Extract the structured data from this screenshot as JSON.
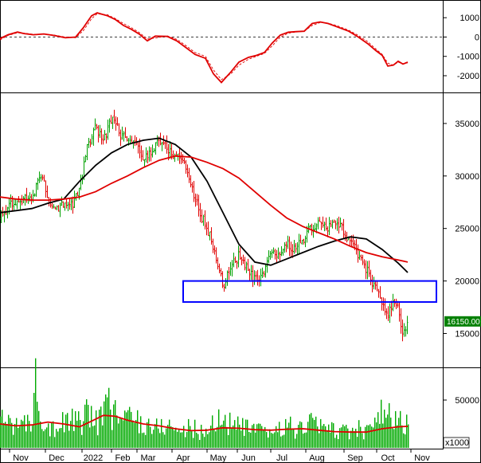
{
  "chart_data": [
    {
      "type": "line",
      "panel": "oscillator",
      "ylim": [
        -2700,
        1750
      ],
      "yticks": [
        "1000",
        "0",
        "-1000",
        "-2000"
      ],
      "ytick_values": [
        1000,
        0,
        -1000,
        -2000
      ],
      "zero_line": true,
      "series": [
        {
          "color": "#e00000",
          "style": "solid",
          "points": [
            [
              0,
              -80
            ],
            [
              10,
              120
            ],
            [
              22,
              260
            ],
            [
              30,
              180
            ],
            [
              42,
              120
            ],
            [
              55,
              160
            ],
            [
              68,
              80
            ],
            [
              82,
              -40
            ],
            [
              95,
              0
            ],
            [
              105,
              500
            ],
            [
              115,
              1100
            ],
            [
              122,
              1250
            ],
            [
              135,
              1100
            ],
            [
              145,
              900
            ],
            [
              155,
              600
            ],
            [
              165,
              400
            ],
            [
              175,
              150
            ],
            [
              185,
              -200
            ],
            [
              195,
              50
            ],
            [
              210,
              30
            ],
            [
              222,
              -200
            ],
            [
              232,
              -500
            ],
            [
              245,
              -900
            ],
            [
              258,
              -1100
            ],
            [
              268,
              -1900
            ],
            [
              278,
              -2350
            ],
            [
              290,
              -1800
            ],
            [
              300,
              -1300
            ],
            [
              312,
              -1050
            ],
            [
              322,
              -950
            ],
            [
              332,
              -800
            ],
            [
              342,
              -300
            ],
            [
              352,
              100
            ],
            [
              362,
              250
            ],
            [
              372,
              280
            ],
            [
              382,
              300
            ],
            [
              392,
              700
            ],
            [
              402,
              780
            ],
            [
              412,
              700
            ],
            [
              425,
              500
            ],
            [
              438,
              300
            ],
            [
              450,
              0
            ],
            [
              462,
              -350
            ],
            [
              472,
              -700
            ],
            [
              480,
              -950
            ],
            [
              487,
              -1500
            ],
            [
              494,
              -1450
            ],
            [
              500,
              -1250
            ],
            [
              506,
              -1400
            ],
            [
              512,
              -1300
            ]
          ]
        },
        {
          "color": "#e00000",
          "style": "dashed",
          "points": [
            [
              0,
              -150
            ],
            [
              10,
              80
            ],
            [
              22,
              220
            ],
            [
              30,
              200
            ],
            [
              42,
              140
            ],
            [
              55,
              150
            ],
            [
              68,
              100
            ],
            [
              82,
              0
            ],
            [
              95,
              -40
            ],
            [
              105,
              350
            ],
            [
              115,
              950
            ],
            [
              122,
              1200
            ],
            [
              135,
              1150
            ],
            [
              145,
              950
            ],
            [
              155,
              700
            ],
            [
              165,
              480
            ],
            [
              175,
              230
            ],
            [
              185,
              -100
            ],
            [
              195,
              -50
            ],
            [
              210,
              60
            ],
            [
              222,
              -120
            ],
            [
              232,
              -400
            ],
            [
              245,
              -800
            ],
            [
              258,
              -1000
            ],
            [
              268,
              -1700
            ],
            [
              278,
              -2200
            ],
            [
              290,
              -1900
            ],
            [
              300,
              -1450
            ],
            [
              312,
              -1150
            ],
            [
              322,
              -1000
            ],
            [
              332,
              -850
            ],
            [
              342,
              -450
            ],
            [
              352,
              0
            ],
            [
              362,
              200
            ],
            [
              372,
              260
            ],
            [
              382,
              300
            ],
            [
              392,
              600
            ],
            [
              402,
              750
            ],
            [
              412,
              720
            ],
            [
              425,
              560
            ],
            [
              438,
              350
            ],
            [
              450,
              80
            ],
            [
              462,
              -250
            ],
            [
              472,
              -620
            ],
            [
              480,
              -900
            ],
            [
              487,
              -1350
            ],
            [
              494,
              -1450
            ],
            [
              500,
              -1300
            ],
            [
              506,
              -1380
            ],
            [
              512,
              -1330
            ]
          ]
        }
      ]
    },
    {
      "type": "candlestick",
      "panel": "price",
      "ylim": [
        12000,
        37500
      ],
      "yticks": [
        "35000",
        "30000",
        "25000",
        "20000",
        "15000"
      ],
      "ytick_values": [
        35000,
        30000,
        25000,
        20000,
        15000
      ],
      "last_price_label": "16150.00",
      "last_price": 16150,
      "up_color": "#00a000",
      "down_color": "#e00000",
      "close_anchors": [
        [
          0,
          26000
        ],
        [
          10,
          27000
        ],
        [
          20,
          27500
        ],
        [
          30,
          28000
        ],
        [
          40,
          27500
        ],
        [
          50,
          30500
        ],
        [
          60,
          28000
        ],
        [
          70,
          27000
        ],
        [
          80,
          27500
        ],
        [
          90,
          27200
        ],
        [
          100,
          29000
        ],
        [
          110,
          33000
        ],
        [
          120,
          34500
        ],
        [
          130,
          33500
        ],
        [
          140,
          35500
        ],
        [
          150,
          34000
        ],
        [
          160,
          33500
        ],
        [
          170,
          33000
        ],
        [
          180,
          31500
        ],
        [
          190,
          32500
        ],
        [
          200,
          33500
        ],
        [
          210,
          32500
        ],
        [
          220,
          32000
        ],
        [
          230,
          31500
        ],
        [
          240,
          29000
        ],
        [
          250,
          26500
        ],
        [
          260,
          25000
        ],
        [
          270,
          22500
        ],
        [
          280,
          19500
        ],
        [
          290,
          21500
        ],
        [
          300,
          22500
        ],
        [
          310,
          21000
        ],
        [
          320,
          20000
        ],
        [
          330,
          20500
        ],
        [
          340,
          22500
        ],
        [
          350,
          22500
        ],
        [
          360,
          23500
        ],
        [
          370,
          23000
        ],
        [
          380,
          24000
        ],
        [
          390,
          25000
        ],
        [
          400,
          25500
        ],
        [
          410,
          25000
        ],
        [
          420,
          25500
        ],
        [
          430,
          25000
        ],
        [
          440,
          23500
        ],
        [
          450,
          22500
        ],
        [
          460,
          21000
        ],
        [
          470,
          19500
        ],
        [
          478,
          18000
        ],
        [
          486,
          16500
        ],
        [
          494,
          18200
        ],
        [
          500,
          17000
        ],
        [
          506,
          14800
        ],
        [
          512,
          16150
        ]
      ],
      "series": [
        {
          "name": "",
          "color": "#000000",
          "points": [
            [
              0,
              26500
            ],
            [
              20,
              26700
            ],
            [
              40,
              26900
            ],
            [
              60,
              27400
            ],
            [
              80,
              27800
            ],
            [
              100,
              29500
            ],
            [
              120,
              31000
            ],
            [
              140,
              32200
            ],
            [
              160,
              33000
            ],
            [
              180,
              33400
            ],
            [
              200,
              33600
            ],
            [
              220,
              33000
            ],
            [
              240,
              31800
            ],
            [
              260,
              29500
            ],
            [
              280,
              26500
            ],
            [
              300,
              23500
            ],
            [
              320,
              21800
            ],
            [
              340,
              21500
            ],
            [
              360,
              22100
            ],
            [
              380,
              22700
            ],
            [
              400,
              23300
            ],
            [
              420,
              23800
            ],
            [
              440,
              24200
            ],
            [
              460,
              24000
            ],
            [
              480,
              23000
            ],
            [
              500,
              21700
            ],
            [
              512,
              20800
            ]
          ]
        },
        {
          "name": "",
          "color": "#e00000",
          "points": [
            [
              0,
              28000
            ],
            [
              20,
              27800
            ],
            [
              40,
              27700
            ],
            [
              60,
              27700
            ],
            [
              80,
              27800
            ],
            [
              100,
              28000
            ],
            [
              120,
              28500
            ],
            [
              140,
              29300
            ],
            [
              160,
              30000
            ],
            [
              180,
              30800
            ],
            [
              200,
              31500
            ],
            [
              220,
              31900
            ],
            [
              240,
              31800
            ],
            [
              260,
              31300
            ],
            [
              280,
              30700
            ],
            [
              300,
              29800
            ],
            [
              320,
              28500
            ],
            [
              340,
              27200
            ],
            [
              360,
              26000
            ],
            [
              380,
              25200
            ],
            [
              400,
              24600
            ],
            [
              420,
              24000
            ],
            [
              440,
              23300
            ],
            [
              460,
              22700
            ],
            [
              480,
              22300
            ],
            [
              500,
              22000
            ],
            [
              512,
              21800
            ]
          ]
        }
      ],
      "annotation": {
        "type": "support-zone",
        "x_range": [
          230,
          548
        ],
        "y_range": [
          18000,
          20000
        ],
        "color": "#0000ff"
      }
    },
    {
      "type": "bar",
      "panel": "volume",
      "ylim": [
        0,
        80000
      ],
      "yticks": [
        "50000"
      ],
      "ytick_values": [
        50000
      ],
      "unit_label": "x1000",
      "bar_color": "#00aa00",
      "volume_anchors": [
        [
          0,
          25000
        ],
        [
          12,
          35000
        ],
        [
          25,
          20000
        ],
        [
          38,
          30000
        ],
        [
          45,
          75000
        ],
        [
          55,
          28000
        ],
        [
          70,
          22000
        ],
        [
          85,
          30000
        ],
        [
          100,
          26000
        ],
        [
          112,
          38000
        ],
        [
          122,
          28000
        ],
        [
          135,
          45000
        ],
        [
          150,
          30000
        ],
        [
          165,
          34000
        ],
        [
          180,
          25000
        ],
        [
          195,
          22000
        ],
        [
          210,
          25000
        ],
        [
          225,
          18000
        ],
        [
          240,
          22000
        ],
        [
          255,
          15000
        ],
        [
          270,
          30000
        ],
        [
          285,
          28000
        ],
        [
          300,
          22000
        ],
        [
          315,
          20000
        ],
        [
          330,
          16000
        ],
        [
          345,
          18000
        ],
        [
          360,
          25000
        ],
        [
          375,
          18000
        ],
        [
          390,
          30000
        ],
        [
          405,
          20000
        ],
        [
          420,
          20000
        ],
        [
          435,
          16000
        ],
        [
          450,
          20000
        ],
        [
          465,
          18000
        ],
        [
          480,
          38000
        ],
        [
          490,
          30000
        ],
        [
          500,
          28000
        ],
        [
          512,
          25000
        ]
      ],
      "series": [
        {
          "name": "",
          "color": "#e00000",
          "points": [
            [
              0,
              25000
            ],
            [
              20,
              23000
            ],
            [
              40,
              24000
            ],
            [
              60,
              27000
            ],
            [
              80,
              25000
            ],
            [
              100,
              22000
            ],
            [
              115,
              28000
            ],
            [
              130,
              34000
            ],
            [
              145,
              33000
            ],
            [
              160,
              29000
            ],
            [
              180,
              25000
            ],
            [
              200,
              23000
            ],
            [
              220,
              20000
            ],
            [
              240,
              18000
            ],
            [
              260,
              18500
            ],
            [
              280,
              21000
            ],
            [
              300,
              20500
            ],
            [
              320,
              19000
            ],
            [
              340,
              18500
            ],
            [
              360,
              19500
            ],
            [
              380,
              20000
            ],
            [
              400,
              18500
            ],
            [
              420,
              17000
            ],
            [
              440,
              16500
            ],
            [
              460,
              16500
            ],
            [
              480,
              20000
            ],
            [
              500,
              22000
            ],
            [
              512,
              22500
            ]
          ]
        }
      ]
    }
  ],
  "x_axis": {
    "labels": [
      "Nov",
      "Dec",
      "2022",
      "Feb",
      "Mar",
      "Apr",
      "May",
      "Jun",
      "Jul",
      "Aug",
      "Sep",
      "Oct",
      "Nov"
    ],
    "positions": [
      26,
      71,
      117,
      154,
      186,
      230,
      274,
      312,
      354,
      398,
      446,
      487,
      530
    ]
  }
}
